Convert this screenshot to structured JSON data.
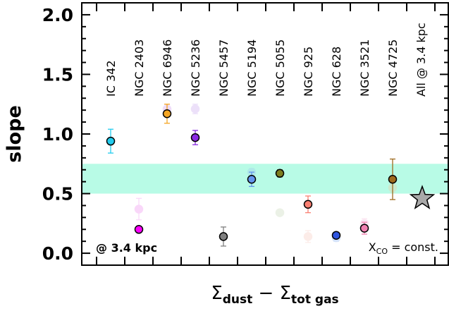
{
  "chart_data": {
    "type": "scatter",
    "title": "",
    "xlabel": {
      "base1": "Σ",
      "sub1": "dust",
      "mid": " − ",
      "base2": "Σ",
      "sub2": "tot gas"
    },
    "ylabel": "slope",
    "ylim": [
      -0.1,
      2.1
    ],
    "yticks": [
      0.0,
      0.5,
      1.0,
      1.5,
      2.0
    ],
    "ytick_labels": [
      "0.0",
      "0.5",
      "1.0",
      "1.5",
      "2.0"
    ],
    "categories": [
      "IC 342",
      "NGC 2403",
      "NGC 6946",
      "NGC 5236",
      "NGC 5457",
      "NGC 5194",
      "NGC 5055",
      "NGC 925",
      "NGC 628",
      "NGC 3521",
      "NGC 4725",
      "All @ 3.4 kpc"
    ],
    "band": {
      "y0": 0.5,
      "y1": 0.75,
      "color": "#b8fbe6"
    },
    "points": [
      {
        "category": "IC 342",
        "y": 0.94,
        "err": 0.1,
        "color": "#22ccee",
        "faded": false
      },
      {
        "category": "NGC 2403",
        "y": 0.37,
        "err": 0.09,
        "color": "#f090f0",
        "faded": true
      },
      {
        "category": "NGC 2403",
        "y": 0.2,
        "err": 0.0,
        "color": "#ff00ff",
        "faded": false
      },
      {
        "category": "NGC 6946",
        "y": 1.21,
        "err": 0.04,
        "color": "#cf9cf0",
        "faded": true
      },
      {
        "category": "NGC 6946",
        "y": 1.17,
        "err": 0.08,
        "color": "#f5a623",
        "faded": false
      },
      {
        "category": "NGC 5236",
        "y": 1.21,
        "err": 0.04,
        "color": "#c9a8ee",
        "faded": true
      },
      {
        "category": "NGC 5236",
        "y": 0.97,
        "err": 0.06,
        "color": "#8a2be2",
        "faded": false
      },
      {
        "category": "NGC 5457",
        "y": 0.14,
        "err": 0.08,
        "color": "#808080",
        "faded": false
      },
      {
        "category": "NGC 5194",
        "y": 0.68,
        "err": 0.03,
        "color": "#a0c8ee",
        "faded": true
      },
      {
        "category": "NGC 5194",
        "y": 0.62,
        "err": 0.06,
        "color": "#6495ed",
        "faded": false
      },
      {
        "category": "NGC 5055",
        "y": 0.34,
        "err": 0.02,
        "color": "#c8d8b8",
        "faded": true
      },
      {
        "category": "NGC 5055",
        "y": 0.67,
        "err": 0.03,
        "color": "#7d7d1e",
        "faded": false
      },
      {
        "category": "NGC 925",
        "y": 0.14,
        "err": 0.05,
        "color": "#f7c9c0",
        "faded": true
      },
      {
        "category": "NGC 925",
        "y": 0.41,
        "err": 0.07,
        "color": "#fa8072",
        "faded": false
      },
      {
        "category": "NGC 628",
        "y": 0.13,
        "err": 0.03,
        "color": "#8ab0f0",
        "faded": true
      },
      {
        "category": "NGC 628",
        "y": 0.15,
        "err": 0.0,
        "color": "#2f55e0",
        "faded": false
      },
      {
        "category": "NGC 3521",
        "y": 0.25,
        "err": 0.04,
        "color": "#f4b8d8",
        "faded": true
      },
      {
        "category": "NGC 3521",
        "y": 0.21,
        "err": 0.05,
        "color": "#f080b0",
        "faded": false
      },
      {
        "category": "NGC 4725",
        "y": 0.55,
        "err": 0.04,
        "color": "#f0c8a0",
        "faded": true
      },
      {
        "category": "NGC 4725",
        "y": 0.62,
        "err": 0.17,
        "color": "#9e6b1e",
        "faded": false
      }
    ],
    "all_point": {
      "category": "All @ 3.4 kpc",
      "y": 0.46,
      "color": "#a9a9a9",
      "marker": "star"
    },
    "annotations": {
      "bottom_left": "@ 3.4 kpc",
      "bottom_right": {
        "base": "X",
        "sub": "CO",
        "rest": " = const."
      }
    }
  }
}
